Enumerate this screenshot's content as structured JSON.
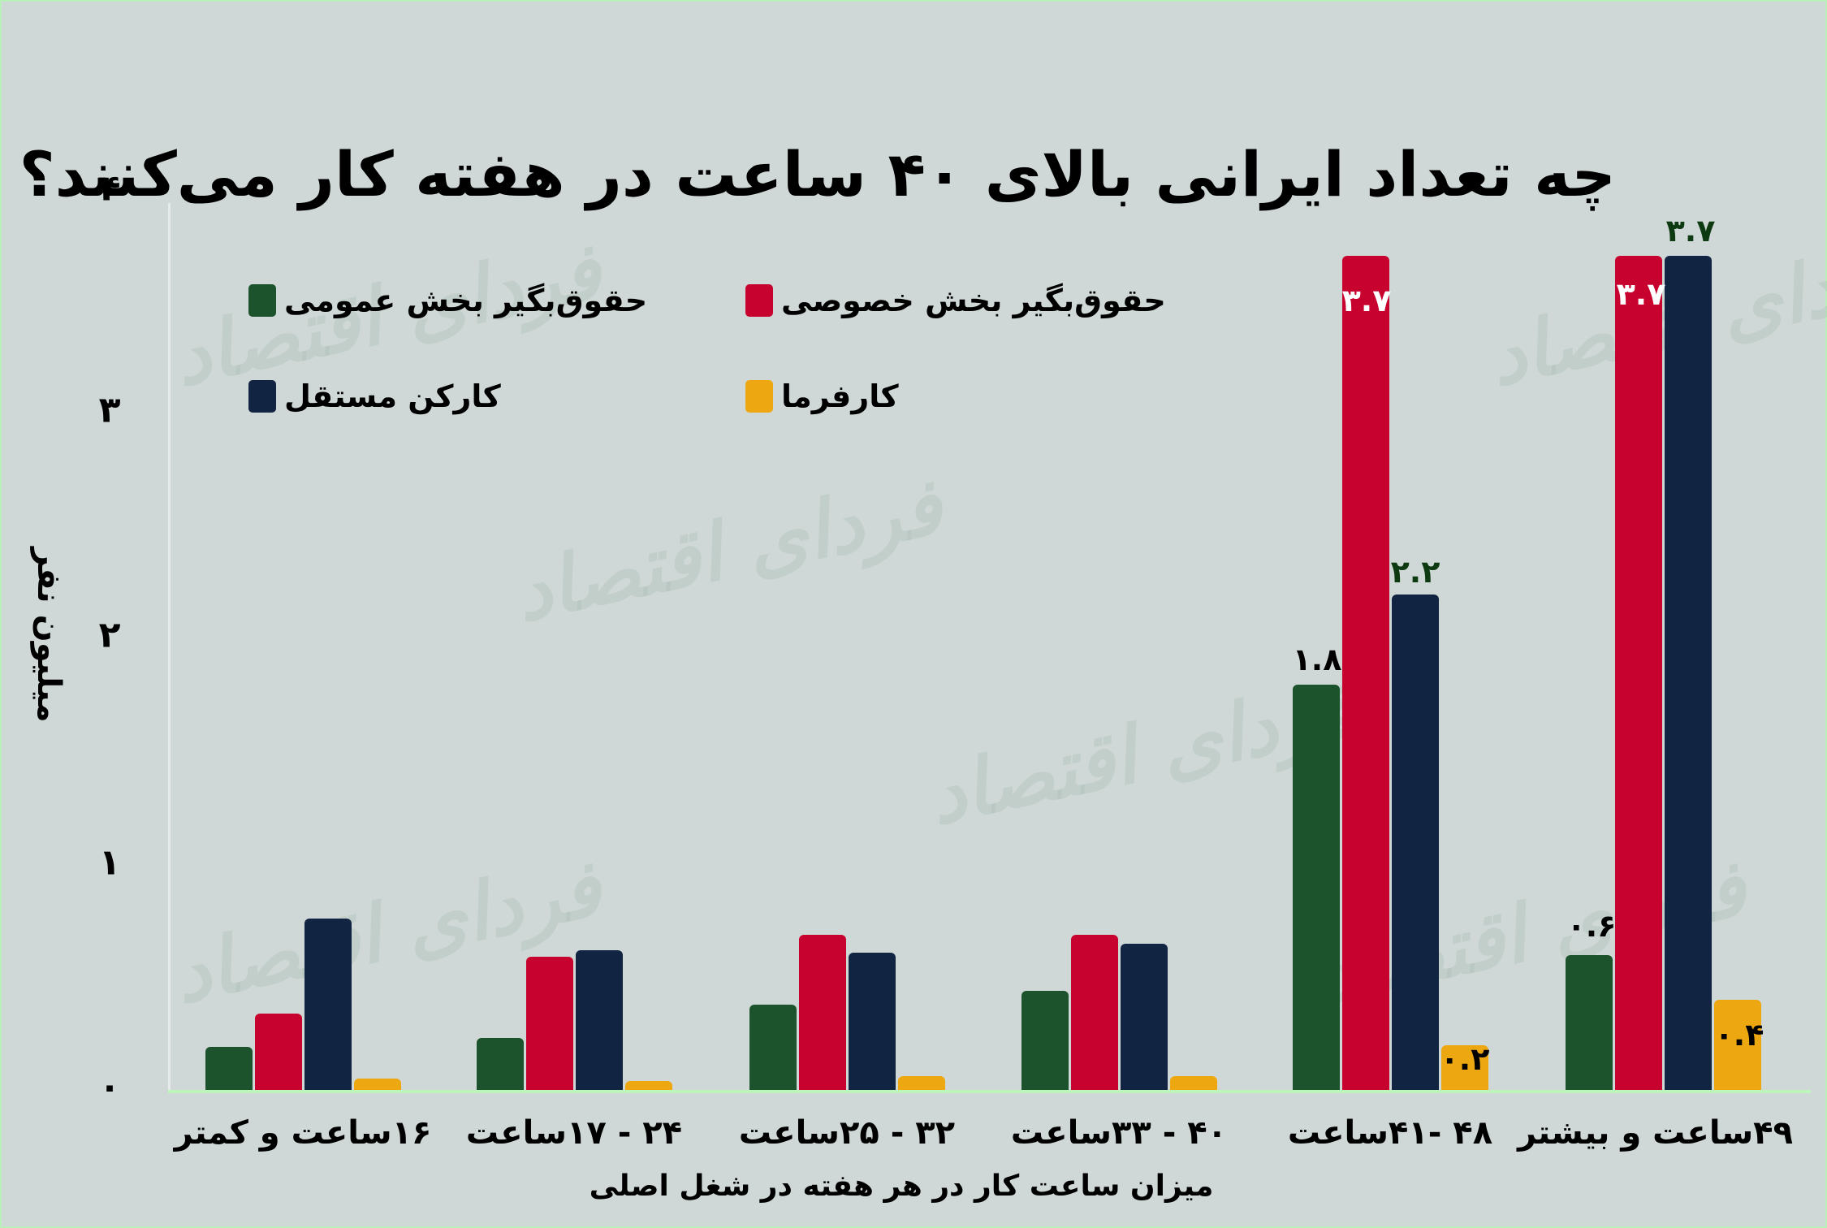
{
  "title": "چه تعداد ایرانی بالای ۴۰ ساعت در هفته کار می‌کنند؟",
  "watermark": "فردای اقتصاد",
  "colors": {
    "public": "#1c532d",
    "private": "#c8022f",
    "self": "#112442",
    "employer": "#eda811",
    "background": "#cfd8d6"
  },
  "legend": {
    "public": "حقوق‌بگیر بخش عمومی",
    "private": "حقوق‌بگیر بخش خصوصی",
    "self": "کارکن مستقل",
    "employer": "کارفرما"
  },
  "yaxis": {
    "label": "میلیون نفر",
    "ticks": [
      "۰",
      "۱",
      "۲",
      "۳",
      "۴"
    ]
  },
  "xaxis": {
    "label": "میزان ساعت کار در هر هفته در شغل اصلی",
    "categories": [
      "۱۶ساعت و کمتر",
      "۲۴ - ۱۷ساعت",
      "۳۲ - ۲۵ساعت",
      "۴۰ - ۳۳ساعت",
      "۴۸ -۴۱ساعت",
      "۴۹ساعت و بیشتر"
    ]
  },
  "labels": {
    "g5_public": "۱.۸",
    "g5_private": "۳.۷",
    "g5_self": "۲.۲",
    "g5_employer": "۰.۲",
    "g6_public": "۰.۶",
    "g6_private": "۳.۷",
    "g6_self": "۳.۷",
    "g6_employer": "۰.۴"
  },
  "chart_data": {
    "type": "bar",
    "title": "چه تعداد ایرانی بالای ۴۰ ساعت در هفته کار می‌کنند؟",
    "xlabel": "میزان ساعت کار در هر هفته در شغل اصلی",
    "ylabel": "میلیون نفر",
    "ylim": [
      0,
      4
    ],
    "yticks": [
      0,
      1,
      2,
      3,
      4
    ],
    "grid": false,
    "legend_position": "top-left",
    "categories": [
      "16 ساعت و کمتر",
      "17 - 24 ساعت",
      "25 - 32 ساعت",
      "33 - 40 ساعت",
      "41 - 48 ساعت",
      "49 ساعت و بیشتر"
    ],
    "series": [
      {
        "name": "حقوق‌بگیر بخش عمومی",
        "color": "#1c532d",
        "values": [
          0.19,
          0.23,
          0.38,
          0.44,
          1.8,
          0.6
        ]
      },
      {
        "name": "حقوق‌بگیر بخش خصوصی",
        "color": "#c8022f",
        "values": [
          0.34,
          0.59,
          0.69,
          0.69,
          3.7,
          3.7
        ]
      },
      {
        "name": "کارکن مستقل",
        "color": "#112442",
        "values": [
          0.76,
          0.62,
          0.61,
          0.65,
          2.2,
          3.7
        ]
      },
      {
        "name": "کارفرما",
        "color": "#eda811",
        "values": [
          0.05,
          0.04,
          0.06,
          0.06,
          0.2,
          0.4
        ]
      }
    ],
    "data_labels": {
      "41 - 48 ساعت": {
        "حقوق‌بگیر بخش عمومی": "1.8",
        "حقوق‌بگیر بخش خصوصی": "3.7",
        "کارکن مستقل": "2.2",
        "کارفرما": "0.2"
      },
      "49 ساعت و بیشتر": {
        "حقوق‌بگیر بخش عمومی": "0.6",
        "حقوق‌بگیر بخش خصوصی": "3.7",
        "کارکن مستقل": "3.7",
        "کارفرما": "0.4"
      }
    }
  }
}
